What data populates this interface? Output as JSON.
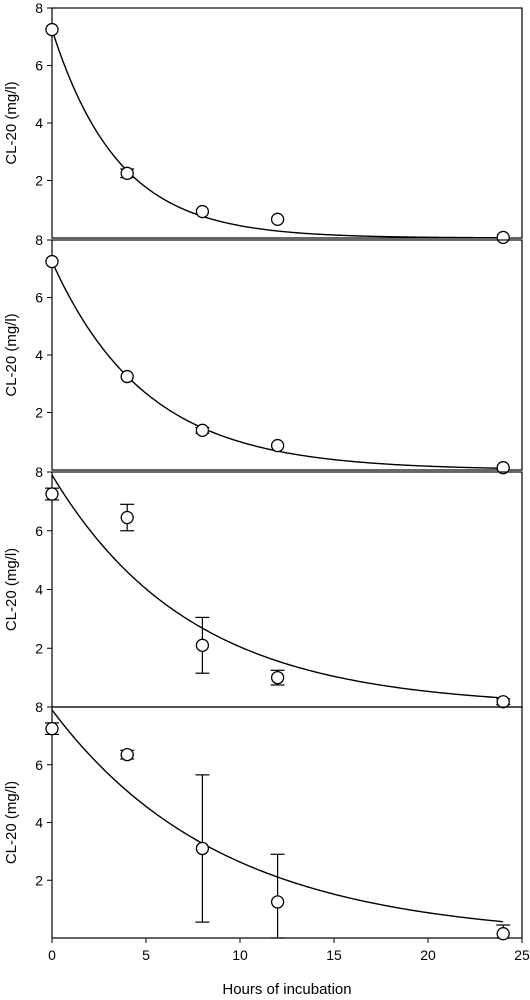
{
  "chart_data": [
    {
      "type": "scatter",
      "ylabel": "CL-20 (mg/l)",
      "y_ticks": [
        "2",
        "4",
        "6",
        "8"
      ],
      "xlim": [
        0,
        25
      ],
      "ylim": [
        0,
        8
      ],
      "points": [
        {
          "x": 0,
          "y": 7.25
        },
        {
          "x": 4,
          "y": 2.25,
          "err": 0.15
        },
        {
          "x": 8,
          "y": 0.92
        },
        {
          "x": 12,
          "y": 0.65
        },
        {
          "x": 24,
          "y": 0.02
        }
      ],
      "fit": {
        "a": 7.25,
        "k": 0.283
      }
    },
    {
      "type": "scatter",
      "ylabel": "CL-20 (mg/l)",
      "y_ticks": [
        "2",
        "4",
        "6",
        "8"
      ],
      "xlim": [
        0,
        25
      ],
      "ylim": [
        0,
        8
      ],
      "points": [
        {
          "x": 0,
          "y": 7.25
        },
        {
          "x": 4,
          "y": 3.25
        },
        {
          "x": 8,
          "y": 1.38,
          "err": 0.1
        },
        {
          "x": 12,
          "y": 0.85
        },
        {
          "x": 24,
          "y": 0.08
        }
      ],
      "fit": {
        "a": 7.25,
        "k": 0.2
      }
    },
    {
      "type": "scatter",
      "ylabel": "CL-20 (mg/l)",
      "y_ticks": [
        "2",
        "4",
        "6",
        "8"
      ],
      "xlim": [
        0,
        25
      ],
      "ylim": [
        0,
        8
      ],
      "points": [
        {
          "x": 0,
          "y": 7.25,
          "err": 0.2
        },
        {
          "x": 4,
          "y": 6.45,
          "err": 0.45
        },
        {
          "x": 8,
          "y": 2.1,
          "err": 0.95
        },
        {
          "x": 12,
          "y": 1.0,
          "err": 0.25
        },
        {
          "x": 24,
          "y": 0.18,
          "err": 0.1
        }
      ],
      "fit": {
        "a": 7.9,
        "k": 0.135
      }
    },
    {
      "type": "scatter",
      "ylabel": "CL-20 (mg/l)",
      "xlabel": "Hours of incubation",
      "x_ticks": [
        "0",
        "5",
        "10",
        "15",
        "20",
        "25"
      ],
      "y_ticks": [
        "2",
        "4",
        "6",
        "8"
      ],
      "xlim": [
        0,
        25
      ],
      "ylim": [
        0,
        8
      ],
      "points": [
        {
          "x": 0,
          "y": 7.25,
          "err": 0.2
        },
        {
          "x": 4,
          "y": 6.35,
          "err": 0.15
        },
        {
          "x": 8,
          "y": 3.1,
          "err": 2.55
        },
        {
          "x": 12,
          "y": 1.25,
          "err": 1.65
        },
        {
          "x": 24,
          "y": 0.15,
          "err": 0.3
        }
      ],
      "fit": {
        "a": 7.9,
        "k": 0.11
      }
    }
  ]
}
